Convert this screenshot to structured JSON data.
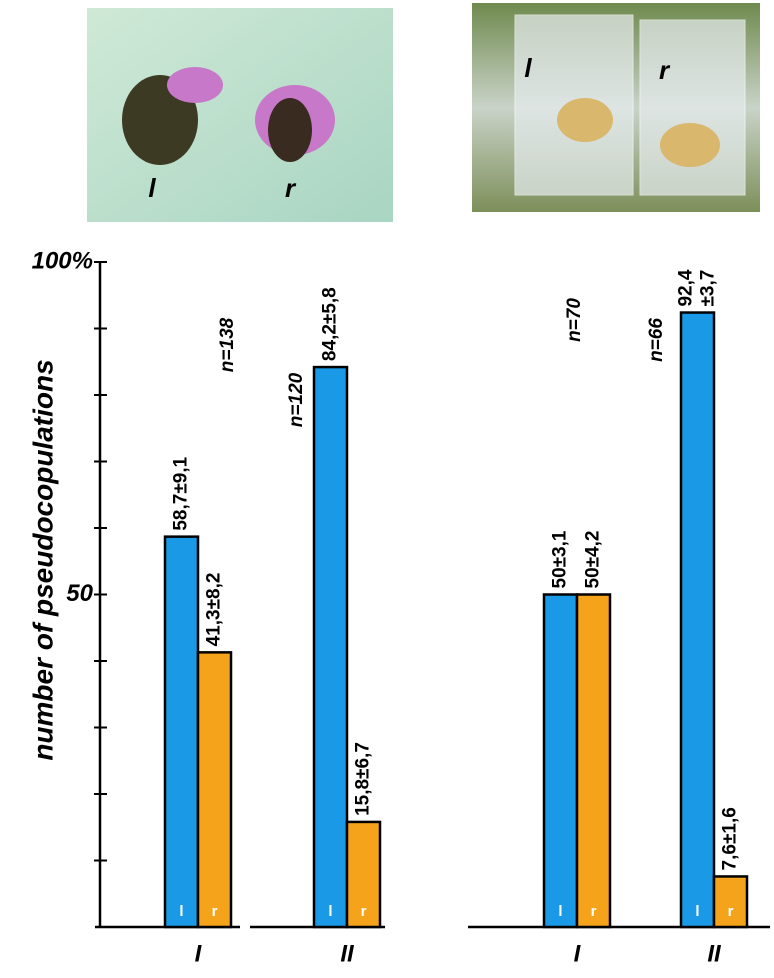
{
  "chart_data": {
    "type": "bar",
    "ylabel": "number of pseudocopulations",
    "categories": [
      "I",
      "II",
      "I",
      "II"
    ],
    "annotations": [
      "n=138",
      "n=120",
      "n=70",
      "n=66"
    ],
    "series": [
      {
        "name": "l",
        "color": "#1a9ae6",
        "values": [
          58.7,
          84.2,
          50,
          92.4
        ],
        "value_labels": [
          "58,7±9,1",
          "84,2±5,8",
          "50±3,1",
          "92,4 ±3,7"
        ]
      },
      {
        "name": "r",
        "color": "#f5a31a",
        "values": [
          41.3,
          15.8,
          50,
          7.6
        ],
        "value_labels": [
          "41,3±8,2",
          "15,8±6,7",
          "50±4,2",
          "7,6±1,6"
        ]
      }
    ],
    "ylim": [
      0,
      100
    ],
    "yticks": [
      {
        "value": 100,
        "label": "100%"
      },
      50
    ],
    "minor_yticks": [
      10,
      20,
      30,
      40,
      60,
      70,
      80,
      90
    ]
  },
  "photos": [
    {
      "labels": [
        "l",
        "r"
      ]
    },
    {
      "labels": [
        "l",
        "r"
      ]
    }
  ]
}
